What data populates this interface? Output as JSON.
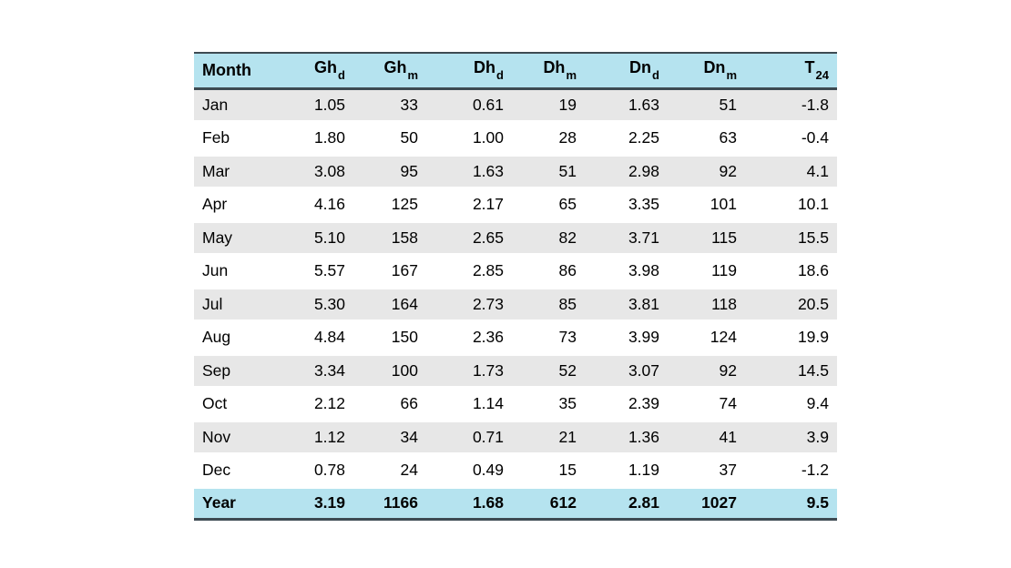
{
  "colors": {
    "header_bg": "#b5e3ef",
    "footer_bg": "#b5e3ef",
    "stripe_bg": "#e7e7e7",
    "rule": "#3d4a52",
    "text": "#000000"
  },
  "chart_data": {
    "type": "table",
    "title": "",
    "columns": [
      {
        "base": "Month",
        "sub": ""
      },
      {
        "base": "Gh",
        "sub": "d"
      },
      {
        "base": "Gh",
        "sub": "m"
      },
      {
        "base": "Dh",
        "sub": "d"
      },
      {
        "base": "Dh",
        "sub": "m"
      },
      {
        "base": "Dn",
        "sub": "d"
      },
      {
        "base": "Dn",
        "sub": "m"
      },
      {
        "base": "T",
        "sub": "24"
      }
    ],
    "rows": [
      [
        "Jan",
        "1.05",
        "33",
        "0.61",
        "19",
        "1.63",
        "51",
        "-1.8"
      ],
      [
        "Feb",
        "1.80",
        "50",
        "1.00",
        "28",
        "2.25",
        "63",
        "-0.4"
      ],
      [
        "Mar",
        "3.08",
        "95",
        "1.63",
        "51",
        "2.98",
        "92",
        "4.1"
      ],
      [
        "Apr",
        "4.16",
        "125",
        "2.17",
        "65",
        "3.35",
        "101",
        "10.1"
      ],
      [
        "May",
        "5.10",
        "158",
        "2.65",
        "82",
        "3.71",
        "115",
        "15.5"
      ],
      [
        "Jun",
        "5.57",
        "167",
        "2.85",
        "86",
        "3.98",
        "119",
        "18.6"
      ],
      [
        "Jul",
        "5.30",
        "164",
        "2.73",
        "85",
        "3.81",
        "118",
        "20.5"
      ],
      [
        "Aug",
        "4.84",
        "150",
        "2.36",
        "73",
        "3.99",
        "124",
        "19.9"
      ],
      [
        "Sep",
        "3.34",
        "100",
        "1.73",
        "52",
        "3.07",
        "92",
        "14.5"
      ],
      [
        "Oct",
        "2.12",
        "66",
        "1.14",
        "35",
        "2.39",
        "74",
        "9.4"
      ],
      [
        "Nov",
        "1.12",
        "34",
        "0.71",
        "21",
        "1.36",
        "41",
        "3.9"
      ],
      [
        "Dec",
        "0.78",
        "24",
        "0.49",
        "15",
        "1.19",
        "37",
        "-1.2"
      ]
    ],
    "footer": [
      "Year",
      "3.19",
      "1166",
      "1.68",
      "612",
      "2.81",
      "1027",
      "9.5"
    ],
    "layout": {
      "grid": "off",
      "striped_rows": true,
      "first_column_align": "left",
      "value_columns_align": "right"
    }
  }
}
